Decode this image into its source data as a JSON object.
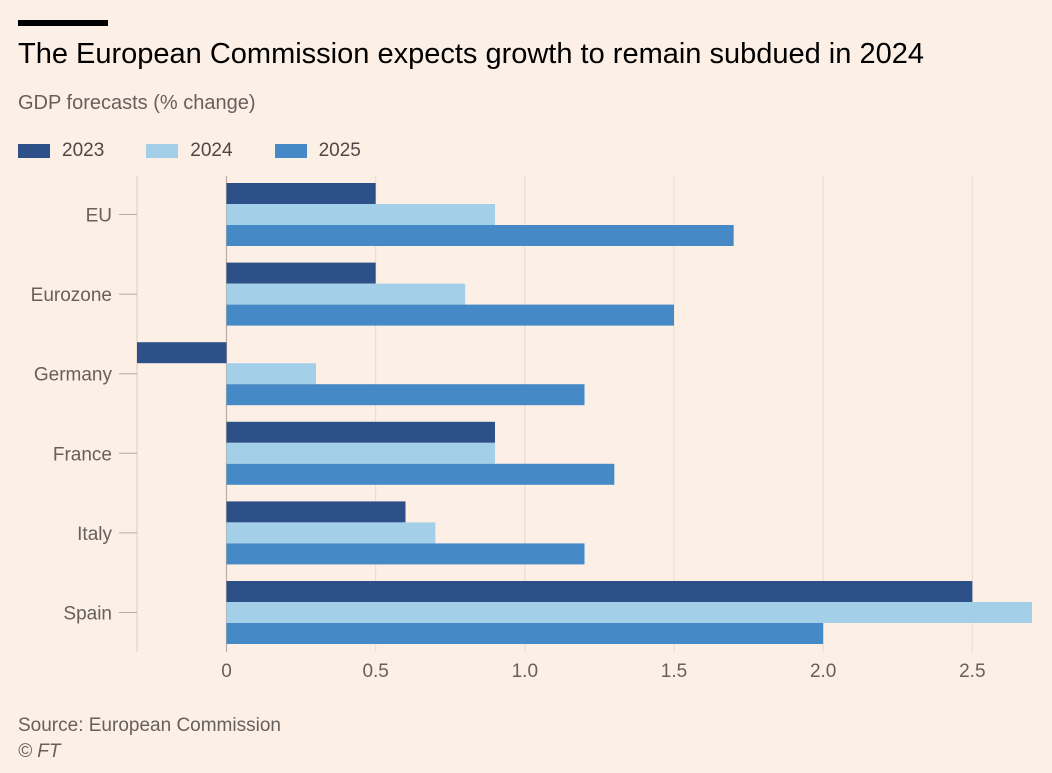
{
  "header": {
    "title": "The European Commission expects growth to remain subdued in 2024",
    "subtitle": "GDP forecasts (% change)"
  },
  "legend": {
    "items": [
      {
        "label": "2023",
        "color": "#2e5088"
      },
      {
        "label": "2024",
        "color": "#a3d0e8"
      },
      {
        "label": "2025",
        "color": "#4589c6"
      }
    ]
  },
  "chart_data": {
    "type": "bar",
    "orientation": "horizontal",
    "title": "The European Commission expects growth to remain subdued in 2024",
    "subtitle": "GDP forecasts (% change)",
    "xlabel": "",
    "ylabel": "",
    "categories": [
      "EU",
      "Eurozone",
      "Germany",
      "France",
      "Italy",
      "Spain"
    ],
    "series": [
      {
        "name": "2023",
        "color": "#2e5088",
        "values": [
          0.5,
          0.5,
          -0.3,
          0.9,
          0.6,
          2.5
        ]
      },
      {
        "name": "2024",
        "color": "#a3d0e8",
        "values": [
          0.9,
          0.8,
          0.3,
          0.9,
          0.7,
          2.7
        ]
      },
      {
        "name": "2025",
        "color": "#4589c6",
        "values": [
          1.7,
          1.5,
          1.2,
          1.3,
          1.2,
          2.0
        ]
      }
    ],
    "xlim": [
      -0.3,
      2.7
    ],
    "xticks": [
      0,
      0.5,
      1.0,
      1.5,
      2.0,
      2.5
    ],
    "xtick_labels": [
      "0",
      "0.5",
      "1.0",
      "1.5",
      "2.0",
      "2.5"
    ],
    "grid": true,
    "legend_position": "top-left"
  },
  "footer": {
    "source": "Source: European Commission",
    "credit": "© FT"
  }
}
